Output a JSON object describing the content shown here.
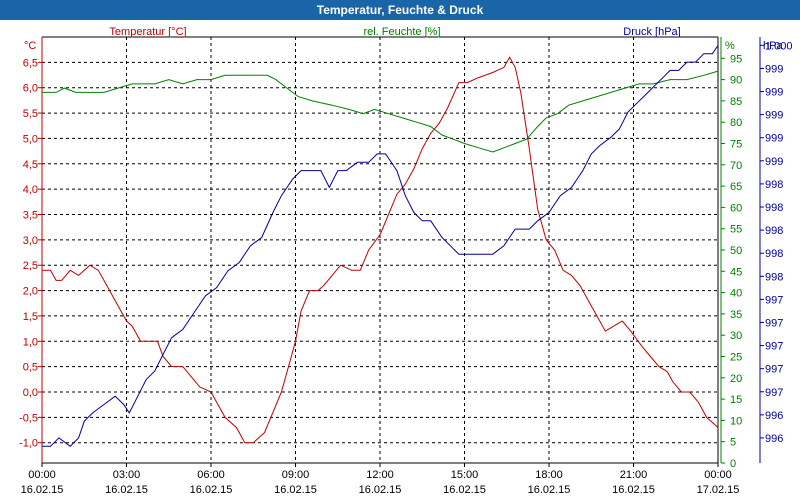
{
  "window": {
    "title": "Temperatur, Feuchte & Druck"
  },
  "colors": {
    "temperature": "#c00000",
    "humidity": "#008000",
    "pressure": "#000099",
    "grid": "#000000",
    "titlebar": "#1a64a8"
  },
  "chart_data": {
    "type": "line",
    "title": "Temperatur, Feuchte & Druck",
    "legend": [
      "Temperatur [°C]",
      "rel. Feuchte [%]",
      "Druck [hPa]"
    ],
    "axes": {
      "temperature": {
        "unit": "°C",
        "range": [
          -1.4,
          7.0
        ],
        "ticks": [
          "-1,0",
          "-0,5",
          "0,0",
          "0,5",
          "1,0",
          "1,5",
          "2,0",
          "2,5",
          "3,0",
          "3,5",
          "4,0",
          "4,5",
          "5,0",
          "5,5",
          "6,0",
          "6,5"
        ]
      },
      "humidity": {
        "unit": "%",
        "range": [
          0,
          100
        ],
        "ticks": [
          "0",
          "5",
          "10",
          "15",
          "20",
          "25",
          "30",
          "35",
          "40",
          "45",
          "50",
          "55",
          "60",
          "65",
          "70",
          "75",
          "80",
          "85",
          "90",
          "95"
        ]
      },
      "pressure": {
        "unit": "hPa",
        "range": [
          995.3,
          1000.4
        ],
        "ticks": [
          "996",
          "996",
          "997",
          "997",
          "997",
          "997",
          "997",
          "998",
          "998",
          "998",
          "998",
          "998",
          "999",
          "999",
          "999",
          "999",
          "999",
          "1.000"
        ]
      }
    },
    "x_ticks": [
      {
        "time": "00:00",
        "date": "16.02.15"
      },
      {
        "time": "03:00",
        "date": "16.02.15"
      },
      {
        "time": "06:00",
        "date": "16.02.15"
      },
      {
        "time": "09:00",
        "date": "16.02.15"
      },
      {
        "time": "12:00",
        "date": "16.02.15"
      },
      {
        "time": "15:00",
        "date": "16.02.15"
      },
      {
        "time": "18:00",
        "date": "16.02.15"
      },
      {
        "time": "21:00",
        "date": "16.02.15"
      },
      {
        "time": "00:00",
        "date": "17.02.15"
      }
    ],
    "x_range_hours": [
      0,
      24
    ],
    "series": [
      {
        "name": "Temperatur [°C]",
        "axis": "temperature",
        "points": [
          [
            0,
            2.4
          ],
          [
            0.3,
            2.4
          ],
          [
            0.5,
            2.2
          ],
          [
            0.7,
            2.2
          ],
          [
            1,
            2.4
          ],
          [
            1.3,
            2.3
          ],
          [
            1.7,
            2.5
          ],
          [
            2,
            2.4
          ],
          [
            2.3,
            2.1
          ],
          [
            2.7,
            1.7
          ],
          [
            3,
            1.4
          ],
          [
            3.2,
            1.3
          ],
          [
            3.5,
            1.0
          ],
          [
            3.9,
            1.0
          ],
          [
            4.1,
            1.0
          ],
          [
            4.3,
            0.7
          ],
          [
            4.6,
            0.5
          ],
          [
            5,
            0.5
          ],
          [
            5.3,
            0.3
          ],
          [
            5.6,
            0.1
          ],
          [
            6,
            0.0
          ],
          [
            6.2,
            -0.2
          ],
          [
            6.5,
            -0.5
          ],
          [
            6.9,
            -0.7
          ],
          [
            7.2,
            -1.0
          ],
          [
            7.5,
            -1.0
          ],
          [
            7.7,
            -0.9
          ],
          [
            7.9,
            -0.8
          ],
          [
            8.2,
            -0.4
          ],
          [
            8.5,
            0.0
          ],
          [
            8.8,
            0.6
          ],
          [
            9,
            1.0
          ],
          [
            9.2,
            1.6
          ],
          [
            9.5,
            2.0
          ],
          [
            9.8,
            2.0
          ],
          [
            10,
            2.1
          ],
          [
            10.3,
            2.3
          ],
          [
            10.6,
            2.5
          ],
          [
            11,
            2.4
          ],
          [
            11.3,
            2.4
          ],
          [
            11.6,
            2.8
          ],
          [
            12,
            3.1
          ],
          [
            12.3,
            3.5
          ],
          [
            12.6,
            3.9
          ],
          [
            12.9,
            4.1
          ],
          [
            13.2,
            4.4
          ],
          [
            13.5,
            4.8
          ],
          [
            13.8,
            5.1
          ],
          [
            14.1,
            5.3
          ],
          [
            14.4,
            5.6
          ],
          [
            14.8,
            6.1
          ],
          [
            15.1,
            6.1
          ],
          [
            15.5,
            6.2
          ],
          [
            16,
            6.3
          ],
          [
            16.4,
            6.4
          ],
          [
            16.6,
            6.6
          ],
          [
            16.8,
            6.4
          ],
          [
            17,
            5.9
          ],
          [
            17.3,
            4.8
          ],
          [
            17.6,
            3.6
          ],
          [
            17.9,
            3.0
          ],
          [
            18.2,
            2.8
          ],
          [
            18.5,
            2.4
          ],
          [
            18.8,
            2.3
          ],
          [
            19.1,
            2.1
          ],
          [
            19.4,
            1.8
          ],
          [
            19.7,
            1.5
          ],
          [
            20,
            1.2
          ],
          [
            20.3,
            1.3
          ],
          [
            20.6,
            1.4
          ],
          [
            20.9,
            1.2
          ],
          [
            21.3,
            0.9
          ],
          [
            21.6,
            0.7
          ],
          [
            21.9,
            0.5
          ],
          [
            22.2,
            0.4
          ],
          [
            22.4,
            0.2
          ],
          [
            22.7,
            0.0
          ],
          [
            23,
            0.0
          ],
          [
            23.3,
            -0.2
          ],
          [
            23.6,
            -0.5
          ],
          [
            24,
            -0.7
          ]
        ]
      },
      {
        "name": "rel. Feuchte [%]",
        "axis": "humidity",
        "points": [
          [
            0,
            87
          ],
          [
            0.5,
            87
          ],
          [
            0.8,
            88
          ],
          [
            1.2,
            87
          ],
          [
            1.8,
            87
          ],
          [
            2.2,
            87
          ],
          [
            2.7,
            88
          ],
          [
            3.2,
            89
          ],
          [
            3.6,
            89
          ],
          [
            4,
            89
          ],
          [
            4.5,
            90
          ],
          [
            5,
            89
          ],
          [
            5.5,
            90
          ],
          [
            6,
            90
          ],
          [
            6.5,
            91
          ],
          [
            7.1,
            91
          ],
          [
            7.6,
            91
          ],
          [
            8,
            91
          ],
          [
            8.3,
            90
          ],
          [
            8.7,
            88
          ],
          [
            9.1,
            86
          ],
          [
            9.6,
            85
          ],
          [
            10.3,
            84
          ],
          [
            10.9,
            83
          ],
          [
            11.4,
            82
          ],
          [
            11.8,
            83
          ],
          [
            12.3,
            82
          ],
          [
            12.8,
            81
          ],
          [
            13.3,
            80
          ],
          [
            13.8,
            79
          ],
          [
            14.2,
            77
          ],
          [
            14.6,
            76
          ],
          [
            15,
            75
          ],
          [
            15.5,
            74
          ],
          [
            16,
            73
          ],
          [
            16.4,
            74
          ],
          [
            16.8,
            75
          ],
          [
            17.2,
            76
          ],
          [
            17.6,
            79
          ],
          [
            17.9,
            81
          ],
          [
            18.3,
            82
          ],
          [
            18.7,
            84
          ],
          [
            19.2,
            85
          ],
          [
            19.7,
            86
          ],
          [
            20.2,
            87
          ],
          [
            20.7,
            88
          ],
          [
            21.2,
            89
          ],
          [
            21.7,
            89
          ],
          [
            22.3,
            90
          ],
          [
            22.9,
            90
          ],
          [
            23.5,
            91
          ],
          [
            24,
            92
          ]
        ]
      },
      {
        "name": "Druck [hPa]",
        "axis": "pressure",
        "points": [
          [
            0,
            995.5
          ],
          [
            0.3,
            995.5
          ],
          [
            0.6,
            995.6
          ],
          [
            1,
            995.5
          ],
          [
            1.3,
            995.6
          ],
          [
            1.5,
            995.8
          ],
          [
            1.8,
            995.9
          ],
          [
            2.2,
            996.0
          ],
          [
            2.6,
            996.1
          ],
          [
            2.9,
            996.0
          ],
          [
            3.1,
            995.9
          ],
          [
            3.4,
            996.1
          ],
          [
            3.7,
            996.3
          ],
          [
            4,
            996.4
          ],
          [
            4.3,
            996.6
          ],
          [
            4.6,
            996.8
          ],
          [
            5,
            996.9
          ],
          [
            5.4,
            997.1
          ],
          [
            5.8,
            997.3
          ],
          [
            6.2,
            997.4
          ],
          [
            6.6,
            997.6
          ],
          [
            7,
            997.7
          ],
          [
            7.4,
            997.9
          ],
          [
            7.8,
            998.0
          ],
          [
            8.2,
            998.3
          ],
          [
            8.5,
            998.5
          ],
          [
            8.9,
            998.7
          ],
          [
            9.2,
            998.8
          ],
          [
            9.6,
            998.8
          ],
          [
            9.9,
            998.8
          ],
          [
            10.2,
            998.6
          ],
          [
            10.5,
            998.8
          ],
          [
            10.8,
            998.8
          ],
          [
            11.2,
            998.9
          ],
          [
            11.6,
            998.9
          ],
          [
            11.9,
            999.0
          ],
          [
            12.2,
            999.0
          ],
          [
            12.6,
            998.8
          ],
          [
            12.9,
            998.5
          ],
          [
            13.2,
            998.3
          ],
          [
            13.5,
            998.2
          ],
          [
            13.8,
            998.2
          ],
          [
            14.2,
            998.0
          ],
          [
            14.5,
            997.9
          ],
          [
            14.8,
            997.8
          ],
          [
            15.2,
            997.8
          ],
          [
            15.6,
            997.8
          ],
          [
            16,
            997.8
          ],
          [
            16.4,
            997.9
          ],
          [
            16.8,
            998.1
          ],
          [
            17.3,
            998.1
          ],
          [
            17.6,
            998.2
          ],
          [
            18,
            998.3
          ],
          [
            18.4,
            998.5
          ],
          [
            18.8,
            998.6
          ],
          [
            19.2,
            998.8
          ],
          [
            19.5,
            999.0
          ],
          [
            19.8,
            999.1
          ],
          [
            20.2,
            999.2
          ],
          [
            20.5,
            999.3
          ],
          [
            20.8,
            999.5
          ],
          [
            21.1,
            999.6
          ],
          [
            21.4,
            999.7
          ],
          [
            21.7,
            999.8
          ],
          [
            22,
            999.9
          ],
          [
            22.3,
            1000.0
          ],
          [
            22.6,
            1000.0
          ],
          [
            22.9,
            1000.1
          ],
          [
            23.2,
            1000.1
          ],
          [
            23.5,
            1000.2
          ],
          [
            23.8,
            1000.2
          ],
          [
            24,
            1000.3
          ]
        ]
      }
    ]
  }
}
